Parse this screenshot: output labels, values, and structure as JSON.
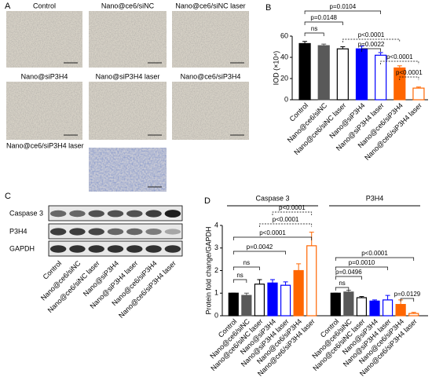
{
  "panel_labels": [
    "A",
    "B",
    "C",
    "D"
  ],
  "image_panel": {
    "labels": [
      "Control",
      "Nano@ce6/siNC",
      "Nano@ce6/siNC laser",
      "Nano@siP3H4",
      "Nano@siP3H4 laser",
      "Nano@ce6/siP3H4",
      "Nano@ce6/siP3H4 laser"
    ]
  },
  "blot": {
    "rows": [
      "Caspase 3",
      "P3H4",
      "GAPDH"
    ]
  },
  "chart_data": [
    {
      "type": "bar",
      "ylabel": "IOD (×10⁴)",
      "categories": [
        "Control",
        "Nano@ce6/siNC",
        "Nano@ce6/siNC laser",
        "Nano@siP3H4",
        "Nano@siP3H4 laser",
        "Nano@ce6/siP3H4",
        "Nano@ce6/siP3H4 laser"
      ],
      "values": [
        53,
        51,
        48,
        48,
        42,
        30,
        11
      ],
      "errors": [
        2,
        1.5,
        2,
        2.5,
        2.5,
        2,
        1
      ],
      "colors": [
        "#000000",
        "#595959",
        "#ffffff",
        "#0000ff",
        "#ffffff",
        "#ff6600",
        "#ffffff"
      ],
      "edgecolors": [
        "#000000",
        "#595959",
        "#000000",
        "#0000ff",
        "#0000ff",
        "#ff6600",
        "#ff6600"
      ],
      "ylim": [
        0,
        60
      ],
      "yticks": [
        0,
        20,
        40,
        60
      ],
      "annotations": [
        "p=0.0104",
        "p=0.0148",
        "ns",
        "p<0.0001",
        "p=0.0022",
        "p<0.0001",
        "p<0.0001"
      ]
    },
    {
      "type": "grouped_bar",
      "ylabel": "Protein fold change/GAPDH",
      "categories": [
        "Control",
        "Nano@ce6/siNC",
        "Nano@ce6/siNC laser",
        "Nano@siP3H4",
        "Nano@siP3H4 laser",
        "Nano@ce6/siP3H4",
        "Nano@ce6/siP3H4 laser"
      ],
      "groups": [
        {
          "name": "Caspase 3",
          "values": [
            1,
            0.9,
            1.4,
            1.45,
            1.35,
            2.0,
            3.1
          ],
          "errors": [
            0,
            0.1,
            0.2,
            0.15,
            0.15,
            0.3,
            0.6
          ]
        },
        {
          "name": "P3H4",
          "values": [
            1,
            1.05,
            0.8,
            0.65,
            0.7,
            0.5,
            0.1
          ],
          "errors": [
            0,
            0.08,
            0.05,
            0.05,
            0.2,
            0.2,
            0.05
          ]
        }
      ],
      "colors": [
        "#000000",
        "#595959",
        "#ffffff",
        "#0000ff",
        "#ffffff",
        "#ff6600",
        "#ffffff"
      ],
      "edgecolors": [
        "#000000",
        "#595959",
        "#000000",
        "#0000ff",
        "#0000ff",
        "#ff6600",
        "#ff6600"
      ],
      "ylim": [
        0,
        4
      ],
      "yticks": [
        0,
        1,
        2,
        3,
        4
      ],
      "annotations": [
        "ns",
        "ns",
        "p=0.0042",
        "p<0.0001",
        "p<0.0001",
        "p<0.0001",
        "ns",
        "p=0.0496",
        "p=0.0010",
        "p<0.0001",
        "p=0.0129"
      ]
    }
  ]
}
